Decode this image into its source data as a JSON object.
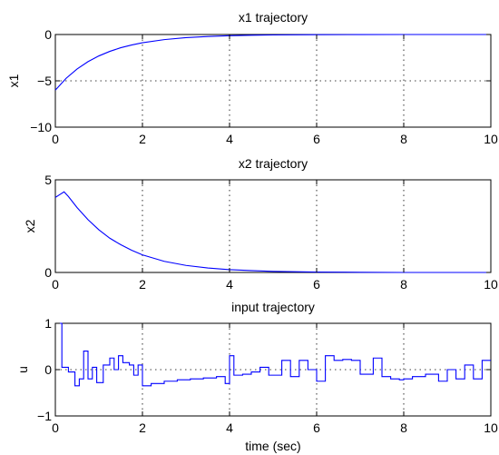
{
  "chart_data": [
    {
      "type": "line",
      "title": "x1 trajectory",
      "xlabel": "",
      "ylabel": "x1",
      "xlim": [
        0,
        10
      ],
      "ylim": [
        -10,
        0
      ],
      "xticks": [
        0,
        2,
        4,
        6,
        8,
        10
      ],
      "yticks": [
        -10,
        -5,
        0
      ],
      "xtick_labels": [
        "0",
        "2",
        "4",
        "6",
        "8",
        "10"
      ],
      "ytick_labels": [
        "−10",
        "−5",
        "0"
      ],
      "grid": true,
      "color": "#0000ff",
      "series": [
        {
          "x": [
            0,
            0.25,
            0.5,
            0.75,
            1,
            1.25,
            1.5,
            1.75,
            2,
            2.5,
            3,
            3.5,
            4,
            4.5,
            5,
            6,
            7,
            8,
            9,
            10
          ],
          "y": [
            -6.0,
            -4.72,
            -3.72,
            -2.93,
            -2.31,
            -1.82,
            -1.43,
            -1.13,
            -0.89,
            -0.55,
            -0.34,
            -0.21,
            -0.13,
            -0.08,
            -0.05,
            -0.02,
            -0.01,
            0,
            0,
            0
          ]
        }
      ]
    },
    {
      "type": "line",
      "title": "x2 trajectory",
      "xlabel": "",
      "ylabel": "x2",
      "xlim": [
        0,
        10
      ],
      "ylim": [
        0,
        5
      ],
      "xticks": [
        0,
        2,
        4,
        6,
        8,
        10
      ],
      "yticks": [
        0,
        5
      ],
      "xtick_labels": [
        "0",
        "2",
        "4",
        "6",
        "8",
        "10"
      ],
      "ytick_labels": [
        "0",
        "5"
      ],
      "grid": true,
      "color": "#0000ff",
      "series": [
        {
          "x": [
            0,
            0.1,
            0.2,
            0.3,
            0.5,
            0.75,
            1,
            1.25,
            1.5,
            1.75,
            2,
            2.5,
            3,
            3.5,
            4,
            4.5,
            5,
            6,
            7,
            8,
            9,
            10
          ],
          "y": [
            4.05,
            4.2,
            4.35,
            4.1,
            3.5,
            2.85,
            2.3,
            1.85,
            1.5,
            1.2,
            0.95,
            0.6,
            0.38,
            0.24,
            0.15,
            0.1,
            0.06,
            0.02,
            0.01,
            0,
            0,
            0
          ]
        }
      ]
    },
    {
      "type": "line",
      "title": "input trajectory",
      "xlabel": "time (sec)",
      "ylabel": "u",
      "xlim": [
        0,
        10
      ],
      "ylim": [
        -1,
        1
      ],
      "xticks": [
        0,
        2,
        4,
        6,
        8,
        10
      ],
      "yticks": [
        -1,
        0,
        1
      ],
      "xtick_labels": [
        "0",
        "2",
        "4",
        "6",
        "8",
        "10"
      ],
      "ytick_labels": [
        "−1",
        "0",
        "1"
      ],
      "grid": true,
      "color": "#0000ff",
      "series": [
        {
          "x": [
            0,
            0.15,
            0.15,
            0.3,
            0.3,
            0.45,
            0.45,
            0.55,
            0.55,
            0.65,
            0.65,
            0.75,
            0.75,
            0.85,
            0.85,
            0.95,
            0.95,
            1.1,
            1.1,
            1.25,
            1.25,
            1.35,
            1.35,
            1.45,
            1.45,
            1.55,
            1.55,
            1.7,
            1.7,
            1.8,
            1.8,
            1.9,
            1.9,
            2.0,
            2.0,
            2.2,
            2.2,
            2.5,
            2.5,
            2.8,
            2.8,
            3.1,
            3.1,
            3.4,
            3.4,
            3.7,
            3.7,
            3.9,
            3.9,
            4.0,
            4.0,
            4.1,
            4.1,
            4.3,
            4.3,
            4.5,
            4.5,
            4.7,
            4.7,
            4.9,
            4.9,
            5.2,
            5.2,
            5.4,
            5.4,
            5.6,
            5.6,
            5.8,
            5.8,
            6.0,
            6.0,
            6.2,
            6.2,
            6.4,
            6.4,
            6.6,
            6.6,
            6.8,
            6.8,
            7.0,
            7.0,
            7.3,
            7.3,
            7.5,
            7.5,
            7.7,
            7.7,
            7.9,
            7.9,
            8.0,
            8.0,
            8.2,
            8.2,
            8.5,
            8.5,
            8.8,
            8.8,
            9.0,
            9.0,
            9.2,
            9.2,
            9.4,
            9.4,
            9.6,
            9.6,
            9.8,
            9.8,
            10
          ],
          "y": [
            1,
            1,
            0.05,
            0.05,
            -0.05,
            -0.05,
            -0.35,
            -0.35,
            -0.2,
            -0.2,
            0.4,
            0.4,
            -0.2,
            -0.2,
            0.05,
            0.05,
            -0.28,
            -0.28,
            0.1,
            0.1,
            0.25,
            0.25,
            0.0,
            0.0,
            0.3,
            0.3,
            0.15,
            0.15,
            0.1,
            0.1,
            -0.12,
            -0.12,
            0.1,
            0.1,
            -0.35,
            -0.35,
            -0.3,
            -0.3,
            -0.25,
            -0.25,
            -0.22,
            -0.22,
            -0.2,
            -0.2,
            -0.18,
            -0.18,
            -0.15,
            -0.15,
            -0.3,
            -0.3,
            0.3,
            0.3,
            -0.12,
            -0.12,
            -0.1,
            -0.1,
            -0.05,
            -0.05,
            0.05,
            0.05,
            -0.12,
            -0.12,
            0.2,
            0.2,
            -0.15,
            -0.15,
            0.2,
            0.2,
            0.0,
            0.0,
            -0.25,
            -0.25,
            0.3,
            0.3,
            0.2,
            0.2,
            0.22,
            0.22,
            0.2,
            0.2,
            -0.1,
            -0.1,
            0.25,
            0.25,
            -0.15,
            -0.15,
            -0.2,
            -0.2,
            -0.22,
            -0.22,
            -0.2,
            -0.2,
            -0.15,
            -0.15,
            -0.1,
            -0.1,
            -0.25,
            -0.25,
            0.0,
            0.0,
            -0.2,
            -0.2,
            0.1,
            0.1,
            -0.2,
            -0.2,
            0.2,
            0.2
          ]
        }
      ]
    }
  ]
}
